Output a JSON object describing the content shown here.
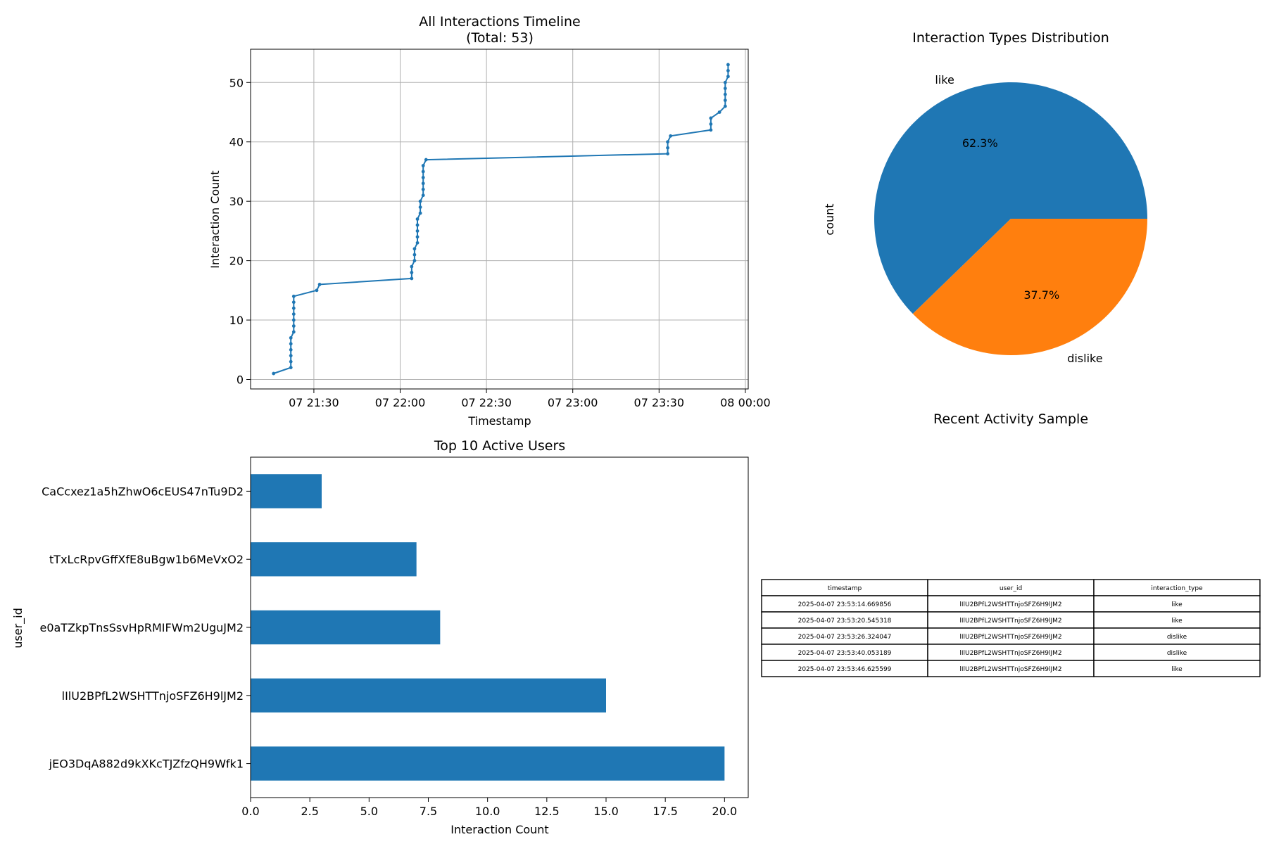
{
  "colors": {
    "accent": "#1f77b4",
    "secondary": "#ff7f0e",
    "grid": "#b0b0b0"
  },
  "chart_data": [
    {
      "type": "line",
      "title_line1": "All Interactions Timeline",
      "title_line2": "(Total: 53)",
      "xlabel": "Timestamp",
      "ylabel": "Interaction Count",
      "x_ticks": [
        "07 21:30",
        "07 22:00",
        "07 22:30",
        "07 23:00",
        "07 23:30",
        "08 00:00"
      ],
      "y_ticks": [
        "0",
        "10",
        "20",
        "30",
        "40",
        "50"
      ],
      "xlim": [
        "2025-04-07 21:08",
        "2025-04-08 00:01"
      ],
      "ylim": [
        -1.6,
        55.6
      ],
      "grid": true,
      "series": [
        {
          "x": [
            "2025-04-07 21:16",
            "2025-04-07 21:22",
            "2025-04-07 21:22",
            "2025-04-07 21:22",
            "2025-04-07 21:22",
            "2025-04-07 21:22",
            "2025-04-07 21:22",
            "2025-04-07 21:23",
            "2025-04-07 21:23",
            "2025-04-07 21:23",
            "2025-04-07 21:23",
            "2025-04-07 21:23",
            "2025-04-07 21:23",
            "2025-04-07 21:23",
            "2025-04-07 21:31",
            "2025-04-07 21:32",
            "2025-04-07 22:04",
            "2025-04-07 22:04",
            "2025-04-07 22:04",
            "2025-04-07 22:05",
            "2025-04-07 22:05",
            "2025-04-07 22:05",
            "2025-04-07 22:06",
            "2025-04-07 22:06",
            "2025-04-07 22:06",
            "2025-04-07 22:06",
            "2025-04-07 22:06",
            "2025-04-07 22:07",
            "2025-04-07 22:07",
            "2025-04-07 22:07",
            "2025-04-07 22:08",
            "2025-04-07 22:08",
            "2025-04-07 22:08",
            "2025-04-07 22:08",
            "2025-04-07 22:08",
            "2025-04-07 22:08",
            "2025-04-07 22:09",
            "2025-04-07 23:33",
            "2025-04-07 23:33",
            "2025-04-07 23:33",
            "2025-04-07 23:34",
            "2025-04-07 23:48",
            "2025-04-07 23:48",
            "2025-04-07 23:48",
            "2025-04-07 23:51",
            "2025-04-07 23:53",
            "2025-04-07 23:53",
            "2025-04-07 23:53",
            "2025-04-07 23:53",
            "2025-04-07 23:53",
            "2025-04-07 23:54",
            "2025-04-07 23:54",
            "2025-04-07 23:54"
          ],
          "y": [
            1,
            2,
            3,
            4,
            5,
            6,
            7,
            8,
            9,
            10,
            11,
            12,
            13,
            14,
            15,
            16,
            17,
            18,
            19,
            20,
            21,
            22,
            23,
            24,
            25,
            26,
            27,
            28,
            29,
            30,
            31,
            32,
            33,
            34,
            35,
            36,
            37,
            38,
            39,
            40,
            41,
            42,
            43,
            44,
            45,
            46,
            47,
            48,
            49,
            50,
            51,
            52,
            53
          ]
        }
      ]
    },
    {
      "type": "pie",
      "title": "Interaction Types Distribution",
      "ylabel": "count",
      "slices": [
        {
          "label": "like",
          "value": 33,
          "pct": "62.3%",
          "color": "#1f77b4"
        },
        {
          "label": "dislike",
          "value": 20,
          "pct": "37.7%",
          "color": "#ff7f0e"
        }
      ]
    },
    {
      "type": "bar",
      "orientation": "horizontal",
      "title": "Top 10 Active Users",
      "xlabel": "Interaction Count",
      "ylabel": "user_id",
      "categories": [
        "jEO3DqA882d9kXKcTJZfzQH9Wfk1",
        "lIlU2BPfL2WSHTTnjoSFZ6H9lJM2",
        "e0aTZkpTnsSsvHpRMIFWm2UguJM2",
        "tTxLcRpvGffXfE8uBgw1b6MeVxO2",
        "CaCcxez1a5hZhwO6cEUS47nTu9D2"
      ],
      "values": [
        20,
        15,
        8,
        7,
        3
      ],
      "x_ticks": [
        "0.0",
        "2.5",
        "5.0",
        "7.5",
        "10.0",
        "12.5",
        "15.0",
        "17.5",
        "20.0"
      ],
      "xlim": [
        0,
        21
      ]
    },
    {
      "type": "table",
      "title": "Recent Activity Sample",
      "columns": [
        "timestamp",
        "user_id",
        "interaction_type"
      ],
      "rows": [
        [
          "2025-04-07 23:53:14.669856",
          "lIlU2BPfL2WSHTTnjoSFZ6H9lJM2",
          "like"
        ],
        [
          "2025-04-07 23:53:20.545318",
          "lIlU2BPfL2WSHTTnjoSFZ6H9lJM2",
          "like"
        ],
        [
          "2025-04-07 23:53:26.324047",
          "lIlU2BPfL2WSHTTnjoSFZ6H9lJM2",
          "dislike"
        ],
        [
          "2025-04-07 23:53:40.053189",
          "lIlU2BPfL2WSHTTnjoSFZ6H9lJM2",
          "dislike"
        ],
        [
          "2025-04-07 23:53:46.625599",
          "lIlU2BPfL2WSHTTnjoSFZ6H9lJM2",
          "like"
        ]
      ]
    }
  ]
}
